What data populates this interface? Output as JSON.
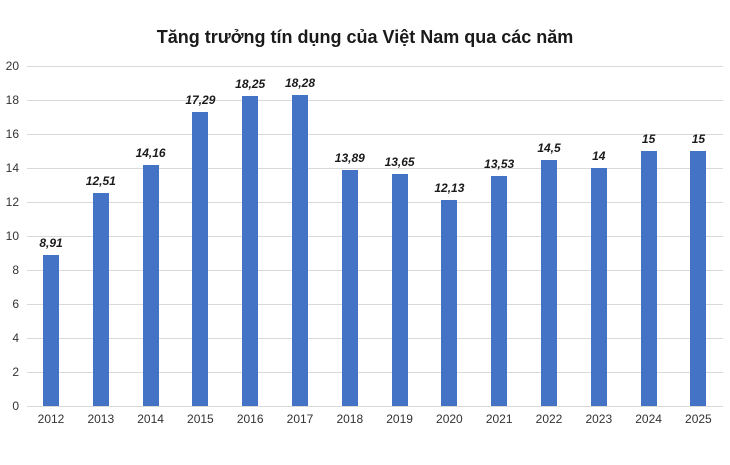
{
  "chart_data": {
    "type": "bar",
    "title": "Tăng trưởng tín dụng của Việt Nam qua các năm",
    "xlabel": "",
    "ylabel": "",
    "ylim": [
      0,
      20
    ],
    "yticks": [
      0,
      2,
      4,
      6,
      8,
      10,
      12,
      14,
      16,
      18,
      20
    ],
    "grid": true,
    "legend": null,
    "bar_color": "#4472c4",
    "categories": [
      "2012",
      "2013",
      "2014",
      "2015",
      "2016",
      "2017",
      "2018",
      "2019",
      "2020",
      "2021",
      "2022",
      "2023",
      "2024",
      "2025"
    ],
    "values": [
      8.91,
      12.51,
      14.16,
      17.29,
      18.25,
      18.28,
      13.89,
      13.65,
      12.13,
      13.53,
      14.5,
      14,
      15,
      15
    ],
    "data_labels": [
      "8,91",
      "12,51",
      "14,16",
      "17,29",
      "18,25",
      "18,28",
      "13,89",
      "13,65",
      "12,13",
      "13,53",
      "14,5",
      "14",
      "15",
      "15"
    ]
  }
}
